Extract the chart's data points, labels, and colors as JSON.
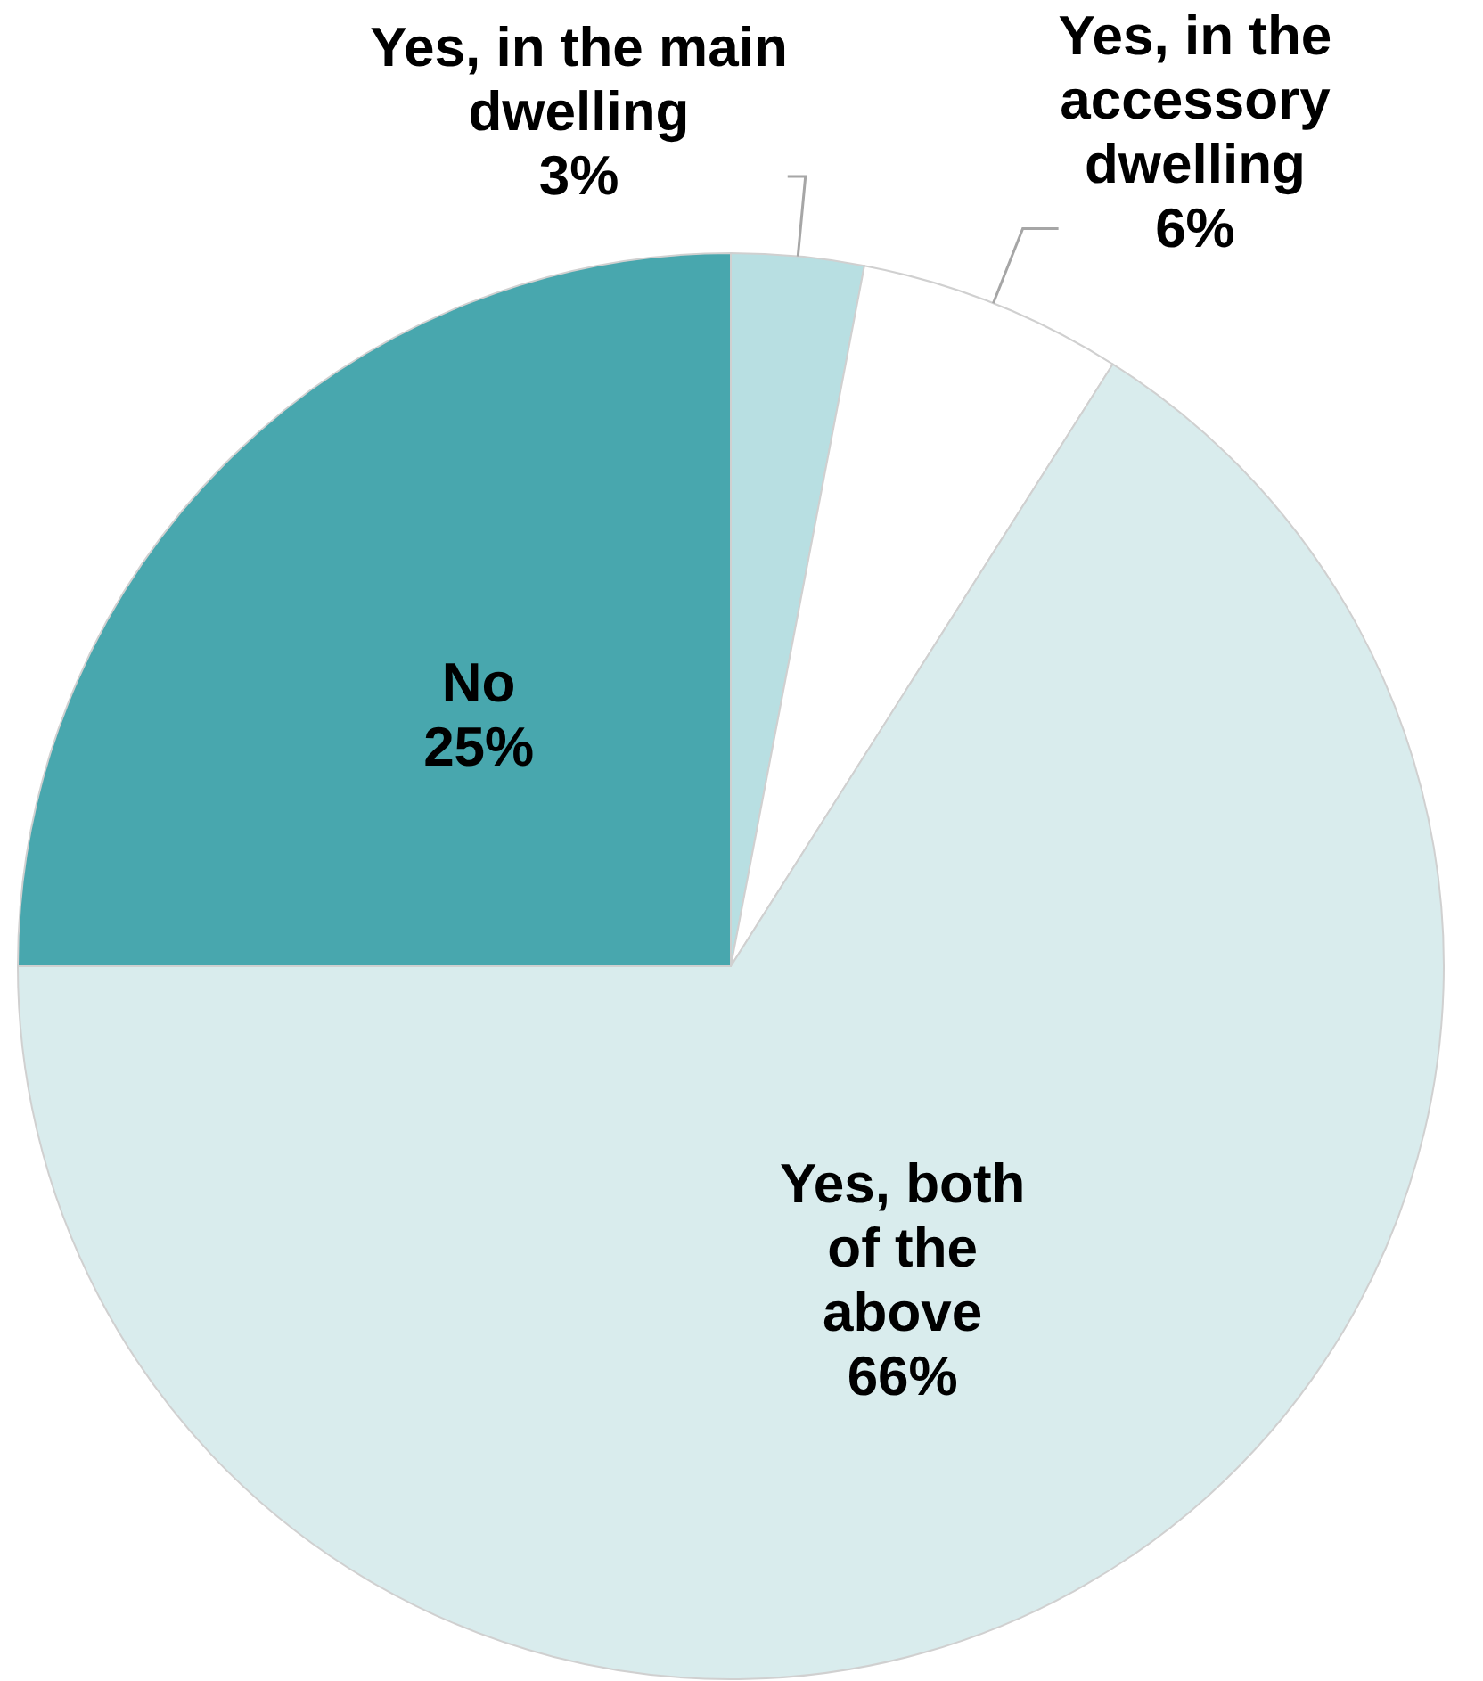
{
  "chart_data": {
    "type": "pie",
    "categories": [
      "Yes, in the main dwelling",
      "Yes, in the accessory dwelling",
      "Yes, both of the above",
      "No"
    ],
    "values": [
      3,
      6,
      66,
      25
    ],
    "colors": [
      "#b8dfe2",
      "#ffffff",
      "#d9eced",
      "#48a7ae"
    ],
    "value_labels": [
      "3%",
      "6%",
      "66%",
      "25%"
    ]
  }
}
